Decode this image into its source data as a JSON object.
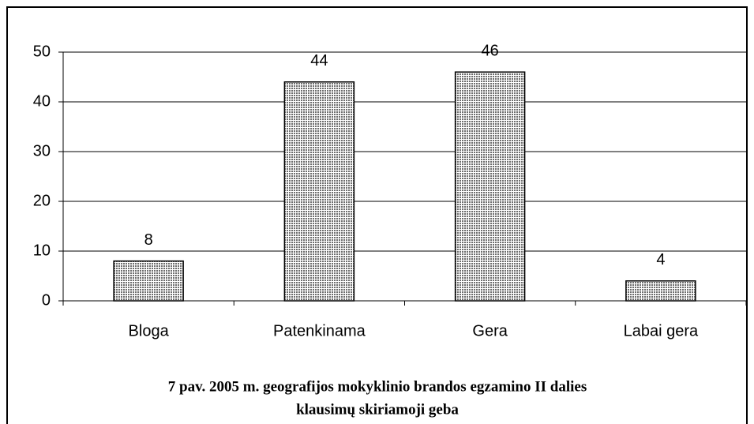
{
  "chart_data": {
    "type": "bar",
    "categories": [
      "Bloga",
      "Patenkinama",
      "Gera",
      "Labai gera"
    ],
    "values": [
      8,
      44,
      46,
      4
    ],
    "color": "#a8a8a8",
    "ylim": [
      0,
      50
    ],
    "yticks": [
      0,
      10,
      20,
      30,
      40,
      50
    ],
    "grid": true,
    "caption": [
      "7 pav. 2005 m. geografijos mokyklinio brandos egzamino II dalies",
      "klausimų skiriamoji geba"
    ]
  }
}
